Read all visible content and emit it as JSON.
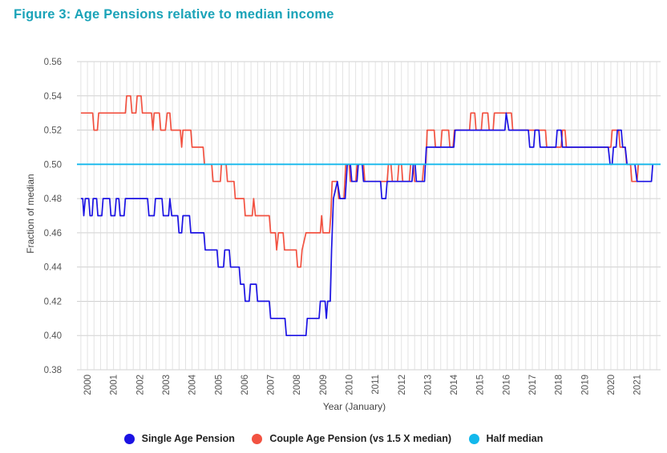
{
  "chart_data": {
    "type": "line",
    "title": "Figure 3: Age Pensions relative to median income",
    "xlabel": "Year (January)",
    "ylabel": "Fraction of median",
    "ylim": [
      0.38,
      0.56
    ],
    "yticks": [
      "0.38",
      "0.40",
      "0.42",
      "0.44",
      "0.46",
      "0.48",
      "0.50",
      "0.52",
      "0.54",
      "0.56"
    ],
    "xlim": [
      1999.6,
      2021.9
    ],
    "xticks": [
      "2000",
      "2001",
      "2002",
      "2003",
      "2004",
      "2005",
      "2006",
      "2007",
      "2008",
      "2009",
      "2010",
      "2011",
      "2012",
      "2013",
      "2014",
      "2015",
      "2016",
      "2017",
      "2018",
      "2019",
      "2020",
      "2021"
    ],
    "grid": true,
    "legend_position": "bottom",
    "series": [
      {
        "name": "Single Age Pension",
        "color": "#1b12e3",
        "points": [
          [
            1999.75,
            0.48
          ],
          [
            1999.82,
            0.48
          ],
          [
            1999.86,
            0.47
          ],
          [
            1999.92,
            0.48
          ],
          [
            2000.05,
            0.48
          ],
          [
            2000.1,
            0.47
          ],
          [
            2000.18,
            0.47
          ],
          [
            2000.22,
            0.48
          ],
          [
            2000.35,
            0.48
          ],
          [
            2000.4,
            0.47
          ],
          [
            2000.55,
            0.47
          ],
          [
            2000.6,
            0.48
          ],
          [
            2000.85,
            0.48
          ],
          [
            2000.9,
            0.47
          ],
          [
            2001.05,
            0.47
          ],
          [
            2001.1,
            0.48
          ],
          [
            2001.2,
            0.48
          ],
          [
            2001.25,
            0.47
          ],
          [
            2001.4,
            0.47
          ],
          [
            2001.45,
            0.48
          ],
          [
            2002.3,
            0.48
          ],
          [
            2002.35,
            0.47
          ],
          [
            2002.55,
            0.47
          ],
          [
            2002.6,
            0.48
          ],
          [
            2002.85,
            0.48
          ],
          [
            2002.9,
            0.47
          ],
          [
            2003.1,
            0.47
          ],
          [
            2003.15,
            0.48
          ],
          [
            2003.22,
            0.47
          ],
          [
            2003.45,
            0.47
          ],
          [
            2003.5,
            0.46
          ],
          [
            2003.6,
            0.46
          ],
          [
            2003.65,
            0.47
          ],
          [
            2003.9,
            0.47
          ],
          [
            2003.95,
            0.46
          ],
          [
            2004.45,
            0.46
          ],
          [
            2004.5,
            0.45
          ],
          [
            2004.95,
            0.45
          ],
          [
            2005.0,
            0.44
          ],
          [
            2005.2,
            0.44
          ],
          [
            2005.25,
            0.45
          ],
          [
            2005.42,
            0.45
          ],
          [
            2005.47,
            0.44
          ],
          [
            2005.8,
            0.44
          ],
          [
            2005.85,
            0.43
          ],
          [
            2005.98,
            0.43
          ],
          [
            2006.03,
            0.42
          ],
          [
            2006.18,
            0.42
          ],
          [
            2006.23,
            0.43
          ],
          [
            2006.45,
            0.43
          ],
          [
            2006.5,
            0.42
          ],
          [
            2006.95,
            0.42
          ],
          [
            2007.0,
            0.41
          ],
          [
            2007.55,
            0.41
          ],
          [
            2007.6,
            0.4
          ],
          [
            2008.35,
            0.4
          ],
          [
            2008.4,
            0.41
          ],
          [
            2008.85,
            0.41
          ],
          [
            2008.9,
            0.42
          ],
          [
            2009.08,
            0.42
          ],
          [
            2009.13,
            0.41
          ],
          [
            2009.18,
            0.42
          ],
          [
            2009.28,
            0.42
          ],
          [
            2009.33,
            0.45
          ],
          [
            2009.4,
            0.48
          ],
          [
            2009.55,
            0.49
          ],
          [
            2009.65,
            0.48
          ],
          [
            2009.85,
            0.48
          ],
          [
            2009.93,
            0.5
          ],
          [
            2010.05,
            0.5
          ],
          [
            2010.1,
            0.49
          ],
          [
            2010.3,
            0.49
          ],
          [
            2010.35,
            0.5
          ],
          [
            2010.5,
            0.5
          ],
          [
            2010.55,
            0.49
          ],
          [
            2011.2,
            0.49
          ],
          [
            2011.25,
            0.48
          ],
          [
            2011.4,
            0.48
          ],
          [
            2011.45,
            0.49
          ],
          [
            2012.4,
            0.49
          ],
          [
            2012.45,
            0.5
          ],
          [
            2012.52,
            0.5
          ],
          [
            2012.57,
            0.49
          ],
          [
            2012.88,
            0.49
          ],
          [
            2012.95,
            0.51
          ],
          [
            2014.0,
            0.51
          ],
          [
            2014.05,
            0.52
          ],
          [
            2015.95,
            0.52
          ],
          [
            2016.0,
            0.53
          ],
          [
            2016.1,
            0.52
          ],
          [
            2016.85,
            0.52
          ],
          [
            2016.9,
            0.51
          ],
          [
            2017.05,
            0.51
          ],
          [
            2017.1,
            0.52
          ],
          [
            2017.25,
            0.52
          ],
          [
            2017.3,
            0.51
          ],
          [
            2017.9,
            0.51
          ],
          [
            2017.95,
            0.52
          ],
          [
            2018.1,
            0.52
          ],
          [
            2018.15,
            0.51
          ],
          [
            2019.9,
            0.51
          ],
          [
            2019.97,
            0.5
          ],
          [
            2020.05,
            0.5
          ],
          [
            2020.1,
            0.51
          ],
          [
            2020.2,
            0.51
          ],
          [
            2020.25,
            0.52
          ],
          [
            2020.4,
            0.52
          ],
          [
            2020.45,
            0.51
          ],
          [
            2020.55,
            0.51
          ],
          [
            2020.62,
            0.5
          ],
          [
            2020.92,
            0.5
          ],
          [
            2021.0,
            0.49
          ],
          [
            2021.55,
            0.49
          ],
          [
            2021.6,
            0.5
          ]
        ]
      },
      {
        "name": "Couple Age Pension (vs 1.5 X median)",
        "color": "#f25241",
        "points": [
          [
            1999.75,
            0.53
          ],
          [
            2000.2,
            0.53
          ],
          [
            2000.25,
            0.52
          ],
          [
            2000.38,
            0.52
          ],
          [
            2000.43,
            0.53
          ],
          [
            2001.45,
            0.53
          ],
          [
            2001.5,
            0.54
          ],
          [
            2001.65,
            0.54
          ],
          [
            2001.7,
            0.53
          ],
          [
            2001.85,
            0.53
          ],
          [
            2001.9,
            0.54
          ],
          [
            2002.05,
            0.54
          ],
          [
            2002.1,
            0.53
          ],
          [
            2002.45,
            0.53
          ],
          [
            2002.5,
            0.52
          ],
          [
            2002.55,
            0.53
          ],
          [
            2002.75,
            0.53
          ],
          [
            2002.8,
            0.52
          ],
          [
            2002.98,
            0.52
          ],
          [
            2003.05,
            0.53
          ],
          [
            2003.15,
            0.53
          ],
          [
            2003.2,
            0.52
          ],
          [
            2003.55,
            0.52
          ],
          [
            2003.6,
            0.51
          ],
          [
            2003.65,
            0.52
          ],
          [
            2003.95,
            0.52
          ],
          [
            2004.0,
            0.51
          ],
          [
            2004.42,
            0.51
          ],
          [
            2004.47,
            0.5
          ],
          [
            2004.75,
            0.5
          ],
          [
            2004.8,
            0.49
          ],
          [
            2005.08,
            0.49
          ],
          [
            2005.12,
            0.5
          ],
          [
            2005.3,
            0.5
          ],
          [
            2005.35,
            0.49
          ],
          [
            2005.6,
            0.49
          ],
          [
            2005.65,
            0.48
          ],
          [
            2005.98,
            0.48
          ],
          [
            2006.03,
            0.47
          ],
          [
            2006.3,
            0.47
          ],
          [
            2006.35,
            0.48
          ],
          [
            2006.42,
            0.47
          ],
          [
            2006.95,
            0.47
          ],
          [
            2007.0,
            0.46
          ],
          [
            2007.18,
            0.46
          ],
          [
            2007.23,
            0.45
          ],
          [
            2007.3,
            0.46
          ],
          [
            2007.48,
            0.46
          ],
          [
            2007.53,
            0.45
          ],
          [
            2007.98,
            0.45
          ],
          [
            2008.03,
            0.44
          ],
          [
            2008.15,
            0.44
          ],
          [
            2008.2,
            0.45
          ],
          [
            2008.35,
            0.46
          ],
          [
            2008.9,
            0.46
          ],
          [
            2008.95,
            0.47
          ],
          [
            2009.0,
            0.46
          ],
          [
            2009.25,
            0.46
          ],
          [
            2009.3,
            0.47
          ],
          [
            2009.35,
            0.49
          ],
          [
            2009.55,
            0.49
          ],
          [
            2009.6,
            0.48
          ],
          [
            2009.8,
            0.48
          ],
          [
            2009.87,
            0.5
          ],
          [
            2010.0,
            0.5
          ],
          [
            2010.05,
            0.49
          ],
          [
            2010.25,
            0.49
          ],
          [
            2010.3,
            0.5
          ],
          [
            2010.55,
            0.5
          ],
          [
            2010.6,
            0.49
          ],
          [
            2011.45,
            0.49
          ],
          [
            2011.5,
            0.5
          ],
          [
            2011.6,
            0.5
          ],
          [
            2011.65,
            0.49
          ],
          [
            2011.85,
            0.49
          ],
          [
            2011.9,
            0.5
          ],
          [
            2012.0,
            0.5
          ],
          [
            2012.05,
            0.49
          ],
          [
            2012.3,
            0.49
          ],
          [
            2012.35,
            0.5
          ],
          [
            2012.45,
            0.5
          ],
          [
            2012.5,
            0.49
          ],
          [
            2012.8,
            0.49
          ],
          [
            2012.85,
            0.5
          ],
          [
            2012.93,
            0.5
          ],
          [
            2012.98,
            0.52
          ],
          [
            2013.25,
            0.52
          ],
          [
            2013.3,
            0.51
          ],
          [
            2013.5,
            0.51
          ],
          [
            2013.55,
            0.52
          ],
          [
            2013.8,
            0.52
          ],
          [
            2013.85,
            0.51
          ],
          [
            2013.97,
            0.51
          ],
          [
            2014.02,
            0.52
          ],
          [
            2014.6,
            0.52
          ],
          [
            2014.65,
            0.53
          ],
          [
            2014.8,
            0.53
          ],
          [
            2014.85,
            0.52
          ],
          [
            2015.05,
            0.52
          ],
          [
            2015.1,
            0.53
          ],
          [
            2015.3,
            0.53
          ],
          [
            2015.35,
            0.52
          ],
          [
            2015.5,
            0.52
          ],
          [
            2015.55,
            0.53
          ],
          [
            2016.2,
            0.53
          ],
          [
            2016.25,
            0.52
          ],
          [
            2017.5,
            0.52
          ],
          [
            2017.55,
            0.51
          ],
          [
            2018.1,
            0.51
          ],
          [
            2018.15,
            0.52
          ],
          [
            2018.25,
            0.52
          ],
          [
            2018.3,
            0.51
          ],
          [
            2020.0,
            0.51
          ],
          [
            2020.05,
            0.52
          ],
          [
            2020.3,
            0.52
          ],
          [
            2020.35,
            0.51
          ],
          [
            2020.55,
            0.51
          ],
          [
            2020.6,
            0.5
          ],
          [
            2020.75,
            0.5
          ],
          [
            2020.8,
            0.49
          ],
          [
            2021.0,
            0.49
          ],
          [
            2021.05,
            0.5
          ],
          [
            2021.55,
            0.5
          ]
        ]
      },
      {
        "name": "Half median",
        "color": "#13b8ec",
        "points": [
          [
            1999.6,
            0.5
          ],
          [
            2021.9,
            0.5
          ]
        ]
      }
    ]
  }
}
